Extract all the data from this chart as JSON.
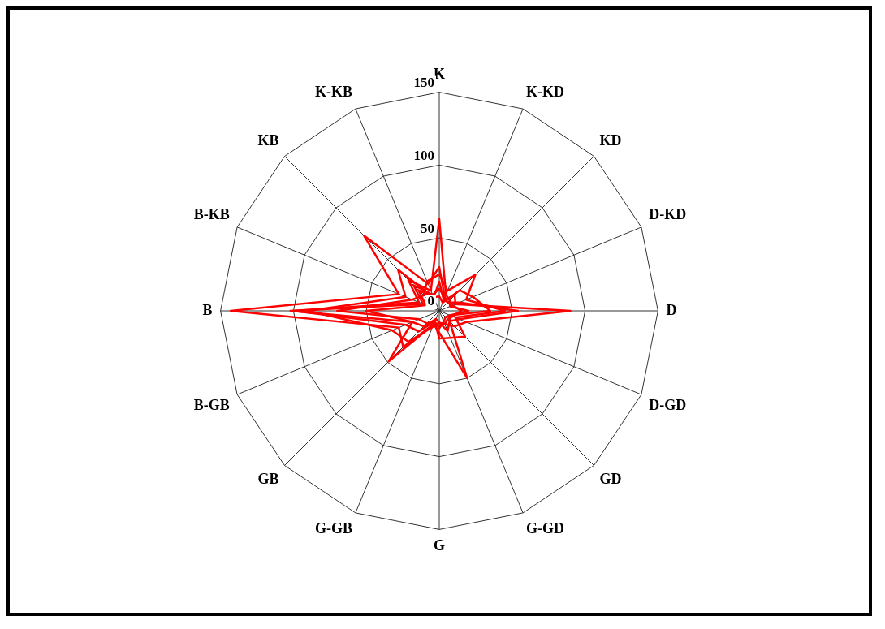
{
  "chart_data": {
    "type": "radar",
    "categories": [
      "K",
      "K-KD",
      "KD",
      "D-KD",
      "D",
      "D-GD",
      "GD",
      "G-GD",
      "G",
      "G-GB",
      "GB",
      "B-GB",
      "B",
      "B-KB",
      "KB",
      "K-KB"
    ],
    "ylim": [
      0,
      150
    ],
    "yticks": [
      0,
      50,
      100,
      150
    ],
    "grid": true,
    "legend": false,
    "marker": "none",
    "series": [
      {
        "color": "#ff0000",
        "values": [
          30,
          10,
          8,
          10,
          15,
          10,
          8,
          10,
          10,
          10,
          35,
          30,
          143,
          30,
          73,
          20
        ]
      },
      {
        "color": "#ff0000",
        "values": [
          63,
          12,
          10,
          8,
          20,
          8,
          6,
          8,
          12,
          8,
          20,
          25,
          100,
          15,
          30,
          15
        ]
      },
      {
        "color": "#ff0000",
        "values": [
          20,
          8,
          15,
          12,
          90,
          20,
          15,
          10,
          8,
          6,
          15,
          20,
          50,
          10,
          20,
          10
        ]
      },
      {
        "color": "#ff0000",
        "values": [
          15,
          10,
          8,
          15,
          54,
          15,
          10,
          50,
          15,
          10,
          49,
          20,
          102,
          12,
          25,
          12
        ]
      },
      {
        "color": "#ff0000",
        "values": [
          25,
          15,
          35,
          20,
          45,
          12,
          25,
          20,
          19,
          8,
          12,
          15,
          70,
          20,
          15,
          22
        ]
      },
      {
        "color": "#ff0000",
        "values": [
          10,
          6,
          20,
          25,
          35,
          8,
          10,
          15,
          8,
          12,
          30,
          35,
          90,
          25,
          40,
          10
        ]
      }
    ]
  }
}
